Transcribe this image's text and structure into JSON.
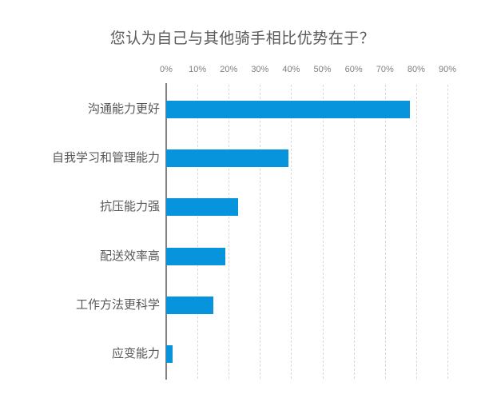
{
  "title": "您认为自己与其他骑手相比优势在于？",
  "colors": {
    "bar": "#0894DC",
    "gridline": "#D9D9D9",
    "axis_line": "#828282",
    "title_text": "#595959",
    "category_text": "#595959",
    "tick_text": "#7F7F7F",
    "background": "#FFFFFF"
  },
  "chart_data": {
    "type": "bar",
    "orientation": "horizontal",
    "title": "您认为自己与其他骑手相比优势在于？",
    "categories": [
      "沟通能力更好",
      "自我学习和管理能力",
      "抗压能力强",
      "配送效率高",
      "工作方法更科学",
      "应变能力"
    ],
    "values": [
      78,
      39,
      23,
      19,
      15,
      2
    ],
    "unit": "%",
    "xlabel": "",
    "ylabel": "",
    "xlim": [
      0,
      90
    ],
    "xticks": [
      "0%",
      "10%",
      "20%",
      "30%",
      "40%",
      "50%",
      "60%",
      "70%",
      "80%",
      "90%"
    ],
    "grid": "vertical-dashed",
    "legend": "none",
    "data_labels": "none"
  }
}
